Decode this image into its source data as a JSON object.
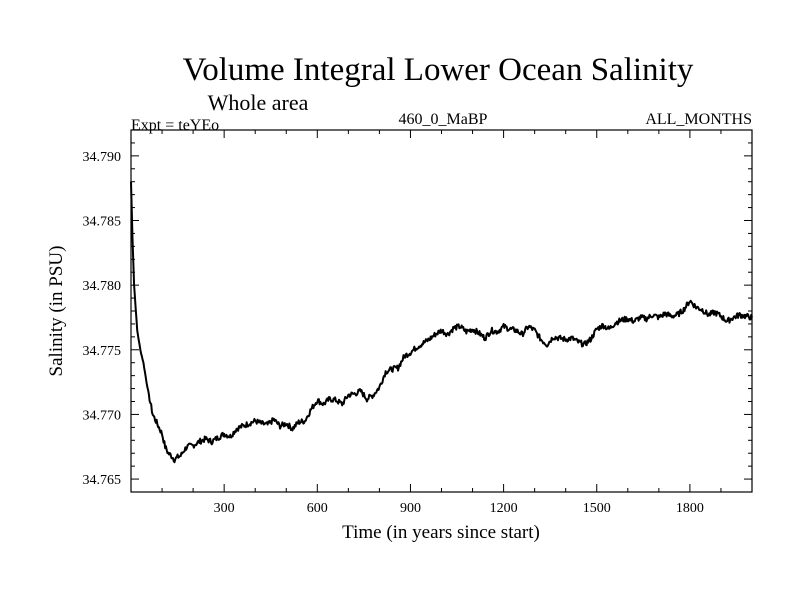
{
  "chart_data": {
    "type": "line",
    "title": "Volume Integral Lower Ocean Salinity",
    "subtitle": "Whole area",
    "experiment_label": "Expt = teYEo",
    "center_label": "460_0_MaBP",
    "right_label": "ALL_MONTHS",
    "xlabel": "Time (in years since start)",
    "ylabel": "Salinity (in PSU)",
    "xlim": [
      0,
      2000
    ],
    "ylim": [
      34.764,
      34.792
    ],
    "xticks": [
      300,
      600,
      900,
      1200,
      1500,
      1800
    ],
    "xtick_labels": [
      "300",
      "600",
      "900",
      "1200",
      "1500",
      "1800"
    ],
    "yticks": [
      34.765,
      34.77,
      34.775,
      34.78,
      34.785,
      34.79
    ],
    "ytick_labels": [
      "34.765",
      "34.770",
      "34.775",
      "34.780",
      "34.785",
      "34.790"
    ],
    "grid": false,
    "series": [
      {
        "name": "salinity",
        "color": "#000000",
        "x": [
          0,
          5,
          10,
          20,
          30,
          40,
          50,
          60,
          70,
          80,
          90,
          100,
          110,
          120,
          130,
          140,
          150,
          160,
          170,
          180,
          200,
          220,
          240,
          260,
          280,
          300,
          320,
          340,
          360,
          380,
          400,
          420,
          440,
          460,
          480,
          500,
          520,
          540,
          560,
          580,
          600,
          620,
          640,
          660,
          680,
          700,
          720,
          740,
          760,
          780,
          800,
          820,
          840,
          860,
          880,
          900,
          920,
          940,
          960,
          980,
          1000,
          1020,
          1040,
          1060,
          1080,
          1100,
          1120,
          1140,
          1160,
          1180,
          1200,
          1220,
          1240,
          1260,
          1280,
          1300,
          1320,
          1340,
          1360,
          1380,
          1400,
          1420,
          1440,
          1460,
          1480,
          1500,
          1520,
          1540,
          1560,
          1580,
          1600,
          1620,
          1640,
          1660,
          1680,
          1700,
          1720,
          1740,
          1760,
          1780,
          1800,
          1820,
          1840,
          1860,
          1880,
          1900,
          1920,
          1940,
          1960,
          1980,
          2000
        ],
        "values": [
          34.788,
          34.7835,
          34.78,
          34.7765,
          34.775,
          34.774,
          34.7725,
          34.7712,
          34.77,
          34.7695,
          34.769,
          34.7685,
          34.7675,
          34.767,
          34.7668,
          34.7665,
          34.7667,
          34.7668,
          34.7672,
          34.7675,
          34.7676,
          34.7679,
          34.7681,
          34.7679,
          34.7682,
          34.7685,
          34.7683,
          34.7689,
          34.7691,
          34.7693,
          34.7695,
          34.7693,
          34.7692,
          34.7696,
          34.7691,
          34.7693,
          34.7689,
          34.7694,
          34.7695,
          34.7704,
          34.7711,
          34.7708,
          34.7712,
          34.7711,
          34.7708,
          34.7715,
          34.7716,
          34.7718,
          34.7712,
          34.7715,
          34.7721,
          34.7733,
          34.7735,
          34.7736,
          34.7745,
          34.7748,
          34.7752,
          34.7755,
          34.7758,
          34.7762,
          34.7765,
          34.7762,
          34.7767,
          34.7768,
          34.7764,
          34.7766,
          34.7763,
          34.7759,
          34.7765,
          34.7764,
          34.7768,
          34.7766,
          34.7765,
          34.7762,
          34.7768,
          34.7765,
          34.7758,
          34.7754,
          34.776,
          34.7759,
          34.7758,
          34.7759,
          34.7756,
          34.7754,
          34.7758,
          34.7766,
          34.7769,
          34.7766,
          34.7771,
          34.7773,
          34.7774,
          34.7772,
          34.7775,
          34.7774,
          34.7777,
          34.7775,
          34.7778,
          34.7776,
          34.7777,
          34.7781,
          34.7788,
          34.7783,
          34.7781,
          34.7777,
          34.7779,
          34.7776,
          34.7772,
          34.7775,
          34.7777,
          34.7776,
          34.7775
        ]
      }
    ]
  }
}
